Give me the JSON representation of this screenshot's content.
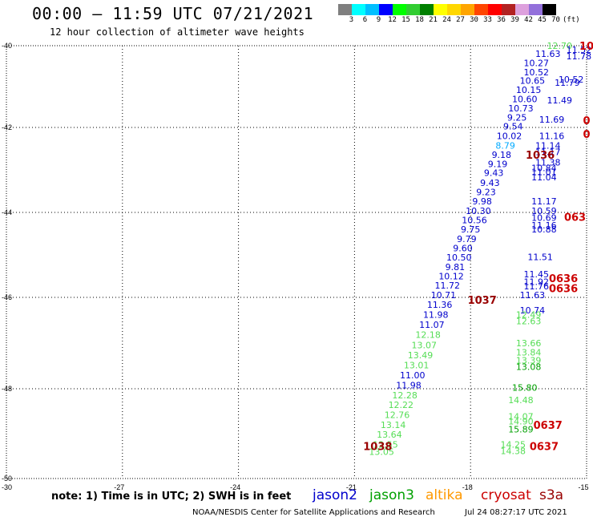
{
  "header": {
    "title": "00:00 – 11:59 UTC 07/21/2021",
    "subtitle": "12 hour collection of altimeter wave heights"
  },
  "color_scale": {
    "labels": [
      "3",
      "6",
      "9",
      "12",
      "15",
      "18",
      "21",
      "24",
      "27",
      "30",
      "33",
      "36",
      "39",
      "42",
      "45",
      "70",
      "(ft)"
    ],
    "colors": [
      "#7f7f7f",
      "#00ffff",
      "#00bfff",
      "#0000ff",
      "#00ff00",
      "#32cd32",
      "#008000",
      "#ffff00",
      "#ffd700",
      "#ffa500",
      "#ff4500",
      "#ff0000",
      "#b22222",
      "#dda0dd",
      "#9370db",
      "#000000"
    ]
  },
  "axes": {
    "lat_labels": [
      "-40",
      "-42",
      "-44",
      "-46",
      "-48",
      "-50"
    ],
    "lon_labels": [
      "-30",
      "-27",
      "-24",
      "-21",
      "-18",
      "-15"
    ]
  },
  "satellite_colors": {
    "jason2": "#0000cc",
    "jason3": "#00a000",
    "altika": "#ff9900",
    "cryosat": "#cc0000",
    "s3a": "#990000",
    "cyan": "#00aaff",
    "light_green": "#55dd55"
  },
  "wave_points": [
    {
      "text": "12.70",
      "lon": -15.7,
      "lat": -40.0,
      "c": "light_green"
    },
    {
      "text": "11.52",
      "lon": -15.2,
      "lat": -40.1,
      "c": "jason2"
    },
    {
      "text": "11.63",
      "lon": -16.0,
      "lat": -40.2,
      "c": "jason2"
    },
    {
      "text": "11.78",
      "lon": -15.2,
      "lat": -40.25,
      "c": "jason2"
    },
    {
      "text": "10.27",
      "lon": -16.3,
      "lat": -40.42,
      "c": "jason2"
    },
    {
      "text": "10.52",
      "lon": -16.3,
      "lat": -40.65,
      "c": "jason2"
    },
    {
      "text": "10.65",
      "lon": -16.4,
      "lat": -40.85,
      "c": "jason2"
    },
    {
      "text": "10.52",
      "lon": -15.4,
      "lat": -40.82,
      "c": "jason2"
    },
    {
      "text": "11.79",
      "lon": -15.5,
      "lat": -40.9,
      "c": "jason2"
    },
    {
      "text": "10.15",
      "lon": -16.5,
      "lat": -41.08,
      "c": "jason2"
    },
    {
      "text": "10.60",
      "lon": -16.6,
      "lat": -41.3,
      "c": "jason2"
    },
    {
      "text": "11.49",
      "lon": -15.7,
      "lat": -41.33,
      "c": "jason2"
    },
    {
      "text": "10.73",
      "lon": -16.7,
      "lat": -41.53,
      "c": "jason2"
    },
    {
      "text": "9.25",
      "lon": -16.8,
      "lat": -41.75,
      "c": "jason2"
    },
    {
      "text": "11.69",
      "lon": -15.9,
      "lat": -41.8,
      "c": "jason2"
    },
    {
      "text": "9.54",
      "lon": -16.9,
      "lat": -41.97,
      "c": "jason2"
    },
    {
      "text": "10.02",
      "lon": -17.0,
      "lat": -42.2,
      "c": "jason2"
    },
    {
      "text": "11.16",
      "lon": -15.9,
      "lat": -42.2,
      "c": "jason2"
    },
    {
      "text": "8.79",
      "lon": -17.1,
      "lat": -42.42,
      "c": "cyan"
    },
    {
      "text": "11.14",
      "lon": -16.0,
      "lat": -42.42,
      "c": "jason2"
    },
    {
      "text": "9.18",
      "lon": -17.2,
      "lat": -42.64,
      "c": "jason2"
    },
    {
      "text": "11.17",
      "lon": -16.0,
      "lat": -42.58,
      "c": "jason2"
    },
    {
      "text": "9.19",
      "lon": -17.3,
      "lat": -42.86,
      "c": "jason2"
    },
    {
      "text": "11.38",
      "lon": -16.0,
      "lat": -42.82,
      "c": "jason2"
    },
    {
      "text": "10.84",
      "lon": -16.1,
      "lat": -42.95,
      "c": "jason2"
    },
    {
      "text": "9.43",
      "lon": -17.4,
      "lat": -43.07,
      "c": "jason2"
    },
    {
      "text": "11.01",
      "lon": -16.1,
      "lat": -43.05,
      "c": "jason2"
    },
    {
      "text": "11.04",
      "lon": -16.1,
      "lat": -43.17,
      "c": "jason2"
    },
    {
      "text": "9.43",
      "lon": -17.5,
      "lat": -43.3,
      "c": "jason2"
    },
    {
      "text": "9.23",
      "lon": -17.6,
      "lat": -43.52,
      "c": "jason2"
    },
    {
      "text": "9.98",
      "lon": -17.7,
      "lat": -43.74,
      "c": "jason2"
    },
    {
      "text": "11.17",
      "lon": -16.1,
      "lat": -43.74,
      "c": "jason2"
    },
    {
      "text": "10.30",
      "lon": -17.8,
      "lat": -43.96,
      "c": "jason2"
    },
    {
      "text": "10.59",
      "lon": -16.1,
      "lat": -43.96,
      "c": "jason2"
    },
    {
      "text": "10.56",
      "lon": -17.9,
      "lat": -44.18,
      "c": "jason2"
    },
    {
      "text": "10.69",
      "lon": -16.1,
      "lat": -44.12,
      "c": "jason2"
    },
    {
      "text": "11.16",
      "lon": -16.1,
      "lat": -44.3,
      "c": "jason2"
    },
    {
      "text": "9.75",
      "lon": -18.0,
      "lat": -44.4,
      "c": "jason2"
    },
    {
      "text": "10.88",
      "lon": -16.1,
      "lat": -44.4,
      "c": "jason2"
    },
    {
      "text": "9.79",
      "lon": -18.1,
      "lat": -44.62,
      "c": "jason2"
    },
    {
      "text": "9.60",
      "lon": -18.2,
      "lat": -44.84,
      "c": "jason2"
    },
    {
      "text": "11.51",
      "lon": -16.2,
      "lat": -45.05,
      "c": "jason2"
    },
    {
      "text": "10.50",
      "lon": -18.3,
      "lat": -45.06,
      "c": "jason2"
    },
    {
      "text": "9.81",
      "lon": -18.4,
      "lat": -45.28,
      "c": "jason2"
    },
    {
      "text": "11.45",
      "lon": -16.3,
      "lat": -45.45,
      "c": "jason2"
    },
    {
      "text": "10.12",
      "lon": -18.5,
      "lat": -45.5,
      "c": "jason2"
    },
    {
      "text": "11.92",
      "lon": -16.3,
      "lat": -45.63,
      "c": "jason2"
    },
    {
      "text": "11.76",
      "lon": -16.3,
      "lat": -45.74,
      "c": "jason2"
    },
    {
      "text": "11.72",
      "lon": -18.6,
      "lat": -45.72,
      "c": "jason2"
    },
    {
      "text": "10.71",
      "lon": -18.7,
      "lat": -45.94,
      "c": "jason2"
    },
    {
      "text": "11.63",
      "lon": -16.4,
      "lat": -45.94,
      "c": "jason2"
    },
    {
      "text": "11.36",
      "lon": -18.8,
      "lat": -46.16,
      "c": "jason2"
    },
    {
      "text": "10.74",
      "lon": -16.4,
      "lat": -46.28,
      "c": "jason2"
    },
    {
      "text": "11.98",
      "lon": -18.9,
      "lat": -46.38,
      "c": "jason2"
    },
    {
      "text": "12.49",
      "lon": -16.5,
      "lat": -46.38,
      "c": "light_green"
    },
    {
      "text": "11.07",
      "lon": -19.0,
      "lat": -46.6,
      "c": "jason2"
    },
    {
      "text": "12.63",
      "lon": -16.5,
      "lat": -46.52,
      "c": "light_green"
    },
    {
      "text": "12.18",
      "lon": -19.1,
      "lat": -46.82,
      "c": "light_green"
    },
    {
      "text": "13.66",
      "lon": -16.5,
      "lat": -47.0,
      "c": "light_green"
    },
    {
      "text": "13.07",
      "lon": -19.2,
      "lat": -47.04,
      "c": "light_green"
    },
    {
      "text": "13.84",
      "lon": -16.5,
      "lat": -47.2,
      "c": "light_green"
    },
    {
      "text": "13.49",
      "lon": -19.3,
      "lat": -47.26,
      "c": "light_green"
    },
    {
      "text": "13.39",
      "lon": -16.5,
      "lat": -47.38,
      "c": "light_green"
    },
    {
      "text": "13.01",
      "lon": -19.4,
      "lat": -47.48,
      "c": "light_green"
    },
    {
      "text": "13.08",
      "lon": -16.5,
      "lat": -47.52,
      "c": "jason3"
    },
    {
      "text": "11.00",
      "lon": -19.5,
      "lat": -47.7,
      "c": "jason2"
    },
    {
      "text": "11.98",
      "lon": -19.6,
      "lat": -47.92,
      "c": "jason2"
    },
    {
      "text": "15.80",
      "lon": -16.6,
      "lat": -47.97,
      "c": "jason3"
    },
    {
      "text": "12.28",
      "lon": -19.7,
      "lat": -48.14,
      "c": "light_green"
    },
    {
      "text": "14.48",
      "lon": -16.7,
      "lat": -48.25,
      "c": "light_green"
    },
    {
      "text": "12.22",
      "lon": -19.8,
      "lat": -48.36,
      "c": "light_green"
    },
    {
      "text": "12.76",
      "lon": -19.9,
      "lat": -48.58,
      "c": "light_green"
    },
    {
      "text": "14.07",
      "lon": -16.7,
      "lat": -48.62,
      "c": "light_green"
    },
    {
      "text": "14.90",
      "lon": -16.7,
      "lat": -48.72,
      "c": "light_green"
    },
    {
      "text": "13.14",
      "lon": -20.0,
      "lat": -48.8,
      "c": "light_green"
    },
    {
      "text": "15.89",
      "lon": -16.7,
      "lat": -48.9,
      "c": "jason3"
    },
    {
      "text": "13.64",
      "lon": -20.1,
      "lat": -49.02,
      "c": "light_green"
    },
    {
      "text": "12.55",
      "lon": -20.2,
      "lat": -49.24,
      "c": "light_green"
    },
    {
      "text": "14.25",
      "lon": -16.9,
      "lat": -49.24,
      "c": "light_green"
    },
    {
      "text": "14.38",
      "lon": -16.9,
      "lat": -49.38,
      "c": "light_green"
    },
    {
      "text": "13.05",
      "lon": -20.3,
      "lat": -49.4,
      "c": "light_green"
    }
  ],
  "time_labels": [
    {
      "text": "10",
      "lon": -15.0,
      "lat": -40.0,
      "c": "cryosat"
    },
    {
      "text": "0",
      "lon": -15.0,
      "lat": -41.82,
      "c": "cryosat"
    },
    {
      "text": "0",
      "lon": -15.0,
      "lat": -42.15,
      "c": "cryosat"
    },
    {
      "text": "1036",
      "lon": -16.2,
      "lat": -42.64,
      "c": "s3a"
    },
    {
      "text": "063",
      "lon": -15.3,
      "lat": -44.1,
      "c": "cryosat"
    },
    {
      "text": "0636",
      "lon": -15.6,
      "lat": -45.55,
      "c": "cryosat"
    },
    {
      "text": "0636",
      "lon": -15.6,
      "lat": -45.78,
      "c": "cryosat"
    },
    {
      "text": "1037",
      "lon": -17.7,
      "lat": -46.05,
      "c": "s3a"
    },
    {
      "text": "0637",
      "lon": -16.0,
      "lat": -48.8,
      "c": "cryosat"
    },
    {
      "text": "1038",
      "lon": -20.4,
      "lat": -49.28,
      "c": "s3a"
    },
    {
      "text": "0637",
      "lon": -16.1,
      "lat": -49.28,
      "c": "cryosat"
    }
  ],
  "note": "note: 1) Time is in UTC; 2) SWH is in feet",
  "legend": {
    "jason2": "jason2",
    "jason3": "jason3",
    "altika": "altika",
    "cryosat": "cryosat",
    "s3a": "s3a"
  },
  "footer": {
    "center": "NOAA/NESDIS Center for Satellite Applications and Research",
    "timestamp": "Jul 24 08:27:17 UTC 2021"
  }
}
